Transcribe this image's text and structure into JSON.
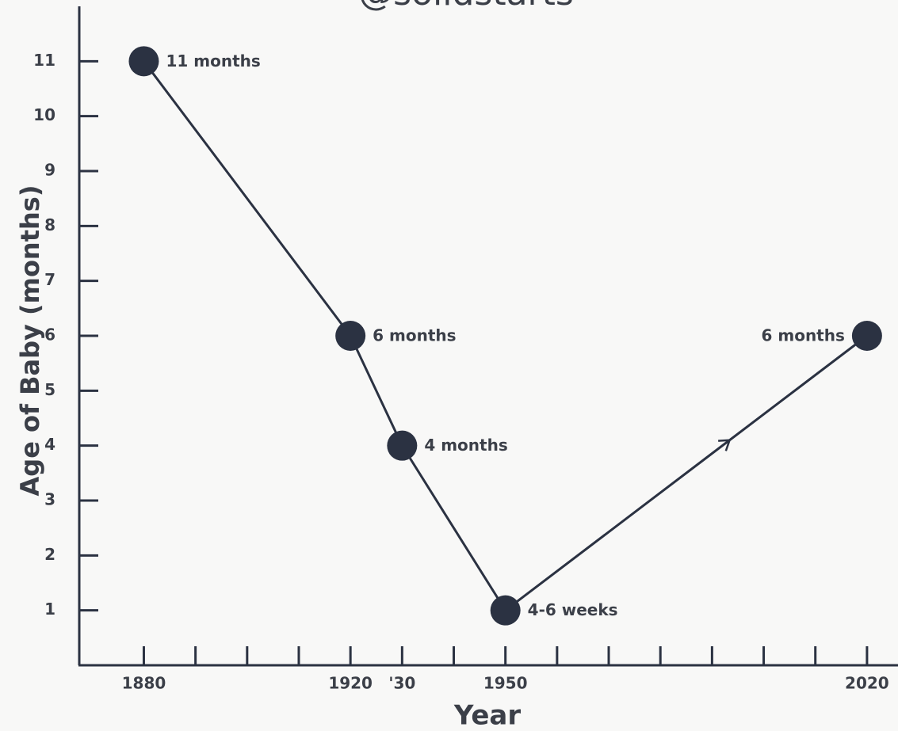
{
  "chart_data": {
    "type": "line",
    "title": "@solidstarts",
    "x_label": "Year",
    "y_label": "Age of Baby (months)",
    "x": [
      1880,
      1920,
      1930,
      1950,
      2020
    ],
    "series": [
      {
        "name": "Age of Baby",
        "color": "#2b3242",
        "values": [
          11,
          6,
          4,
          1,
          6
        ],
        "value_labels": [
          "11 months",
          "6 months",
          "4 months",
          "4-6 weeks",
          "6 months"
        ]
      }
    ],
    "xlim": [
      1867.5,
      2026
    ],
    "xticks": [
      1880,
      1920,
      {
        "value": 1930,
        "label": "'30"
      },
      1950,
      2020
    ],
    "minor_xticks": [
      1890,
      1900,
      1910,
      1940,
      1960,
      1970,
      1980,
      1990,
      2000,
      2010
    ],
    "ylim": [
      0,
      12
    ],
    "yticks": [
      1,
      2,
      3,
      4,
      5,
      6,
      7,
      8,
      9,
      10,
      11
    ]
  }
}
